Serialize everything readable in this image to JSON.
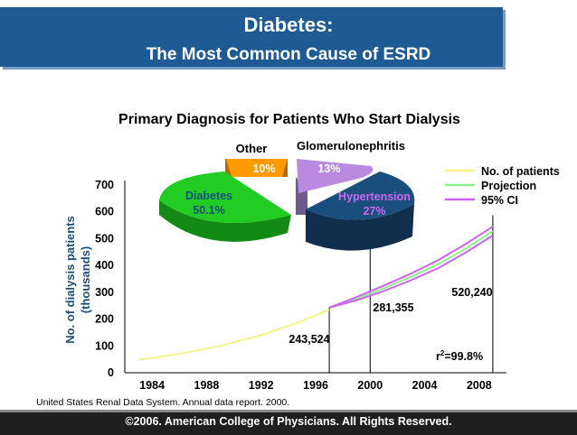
{
  "header": {
    "title": "Diabetes:",
    "subtitle": "The Most Common Cause of ESRD"
  },
  "chart_data": [
    {
      "type": "line",
      "title": "Primary Diagnosis for Patients Who Start Dialysis",
      "ylabel": "No. of dialysis patients (thousands)",
      "xlabel": "",
      "xlim": [
        1982,
        2010
      ],
      "ylim": [
        0,
        700
      ],
      "yticks": [
        0,
        100,
        200,
        300,
        400,
        500,
        600,
        700
      ],
      "ytick_labels": [
        "0",
        "100",
        "200",
        "300",
        "400",
        "500",
        "600",
        "700"
      ],
      "xticks": [
        1984,
        1988,
        1992,
        1996,
        2000,
        2004,
        2008
      ],
      "xtick_labels": [
        "1984",
        "1988",
        "1992",
        "1996",
        "2000",
        "2004",
        "2008"
      ],
      "legend": [
        "No. of patients",
        "Projection",
        "95% CI"
      ],
      "series": [
        {
          "name": "No. of patients",
          "color": "#f3f38a",
          "x": [
            1983,
            1986,
            1989,
            1992,
            1995,
            1997
          ],
          "y": [
            48,
            70,
            100,
            140,
            193,
            235
          ]
        },
        {
          "name": "Projection",
          "color": "#90ee90",
          "x": [
            1997,
            1999,
            2001,
            2003,
            2005,
            2007,
            2009
          ],
          "y": [
            243,
            275,
            315,
            358,
            405,
            462,
            528
          ]
        },
        {
          "name": "95% CI upper",
          "color": "#cc66ee",
          "x": [
            1997,
            1999,
            2001,
            2003,
            2005,
            2007,
            2009
          ],
          "y": [
            243,
            282,
            325,
            370,
            420,
            480,
            545
          ]
        },
        {
          "name": "95% CI lower",
          "color": "#cc66ee",
          "x": [
            1997,
            1999,
            2001,
            2003,
            2005,
            2007,
            2009
          ],
          "y": [
            243,
            270,
            305,
            345,
            390,
            448,
            512
          ]
        }
      ],
      "markers": [
        {
          "x": 2000,
          "label": "281,355"
        },
        {
          "x": 2009,
          "label": "520,240"
        }
      ],
      "annotations": {
        "start_value": "243,524",
        "r2_prefix": "r",
        "r2_sup": "2",
        "r2_suffix": "=99.8%"
      }
    },
    {
      "type": "pie",
      "labels": [
        "Diabetes",
        "Hypertension",
        "Glomerulonephritis",
        "Other"
      ],
      "values": [
        50.1,
        27,
        13,
        10
      ],
      "value_labels": [
        "50.1%",
        "27%",
        "13%",
        "10%"
      ],
      "colors": [
        "#22cc22",
        "#1a4f7d",
        "#b98ae0",
        "#ff9a00"
      ]
    }
  ],
  "source": "United States Renal Data System. Annual data report. 2000.",
  "footer": "©2006.  American College of Physicians.  All Rights Reserved."
}
